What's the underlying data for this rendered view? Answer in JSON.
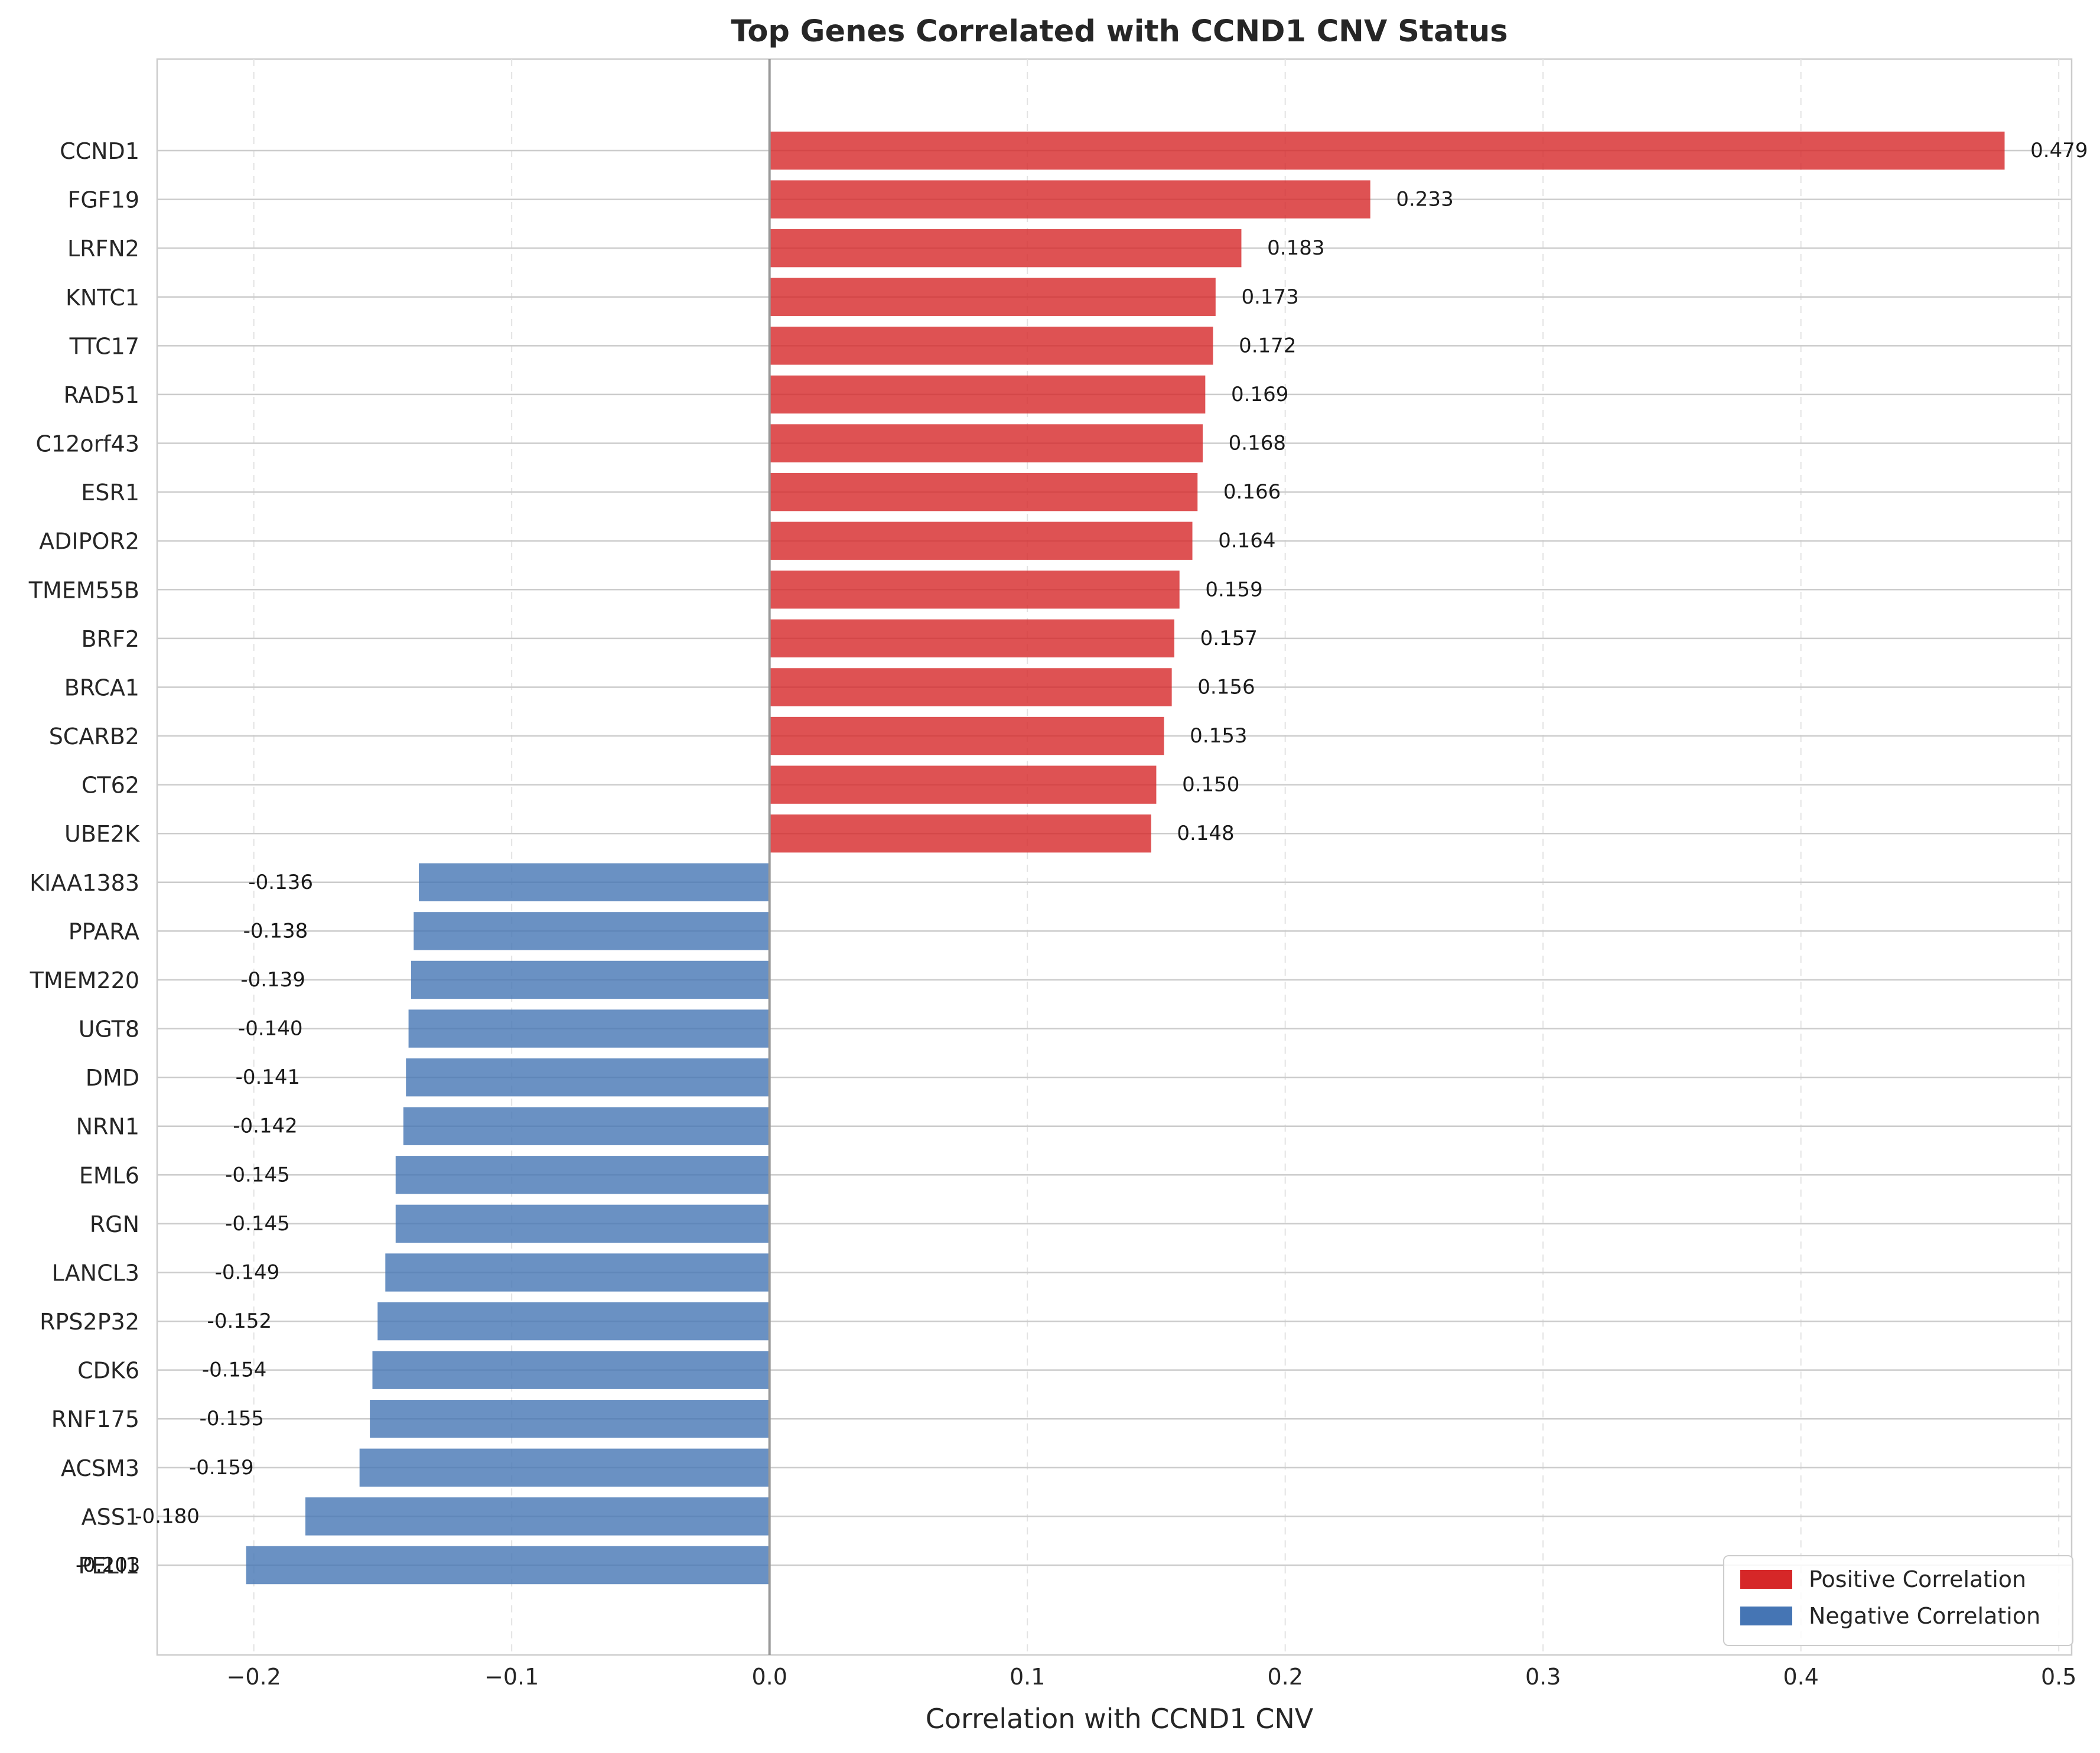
{
  "chart_data": {
    "type": "bar",
    "orientation": "horizontal",
    "title": "Top Genes Correlated with CCND1 CNV Status",
    "xlabel": "Correlation with CCND1 CNV",
    "ylabel": "",
    "xlim": [
      -0.2375,
      0.505
    ],
    "xticks": [
      -0.2,
      -0.1,
      0.0,
      0.1,
      0.2,
      0.3,
      0.4,
      0.5
    ],
    "xtick_labels": [
      "−0.2",
      "−0.1",
      "0.0",
      "0.1",
      "0.2",
      "0.3",
      "0.4",
      "0.5"
    ],
    "grid": true,
    "legend_position": "bottom-right",
    "categories": [
      "CCND1",
      "FGF19",
      "LRFN2",
      "KNTC1",
      "TTC17",
      "RAD51",
      "C12orf43",
      "ESR1",
      "ADIPOR2",
      "TMEM55B",
      "BRF2",
      "BRCA1",
      "SCARB2",
      "CT62",
      "UBE2K",
      "KIAA1383",
      "PPARA",
      "TMEM220",
      "UGT8",
      "DMD",
      "NRN1",
      "EML6",
      "RGN",
      "LANCL3",
      "RPS2P32",
      "CDK6",
      "RNF175",
      "ACSM3",
      "ASS1",
      "PELI1"
    ],
    "values": [
      0.479,
      0.233,
      0.183,
      0.173,
      0.172,
      0.169,
      0.168,
      0.166,
      0.164,
      0.159,
      0.157,
      0.156,
      0.153,
      0.15,
      0.148,
      -0.136,
      -0.138,
      -0.139,
      -0.14,
      -0.141,
      -0.142,
      -0.145,
      -0.145,
      -0.149,
      -0.152,
      -0.154,
      -0.155,
      -0.159,
      -0.18,
      -0.203
    ],
    "value_labels": [
      "0.479",
      "0.233",
      "0.183",
      "0.173",
      "0.172",
      "0.169",
      "0.168",
      "0.166",
      "0.164",
      "0.159",
      "0.157",
      "0.156",
      "0.153",
      "0.150",
      "0.148",
      "-0.136",
      "-0.138",
      "-0.139",
      "-0.140",
      "-0.141",
      "-0.142",
      "-0.145",
      "-0.145",
      "-0.149",
      "-0.152",
      "-0.154",
      "-0.155",
      "-0.159",
      "-0.180",
      "-0.203"
    ],
    "series": [
      {
        "name": "Positive Correlation",
        "color": "#d62728"
      },
      {
        "name": "Negative Correlation",
        "color": "#4575b4"
      }
    ],
    "colors": {
      "positive": "#d62728",
      "negative": "#4575b4",
      "zero_line": "#999999",
      "grid": "#cccccc",
      "text": "#262626"
    }
  }
}
